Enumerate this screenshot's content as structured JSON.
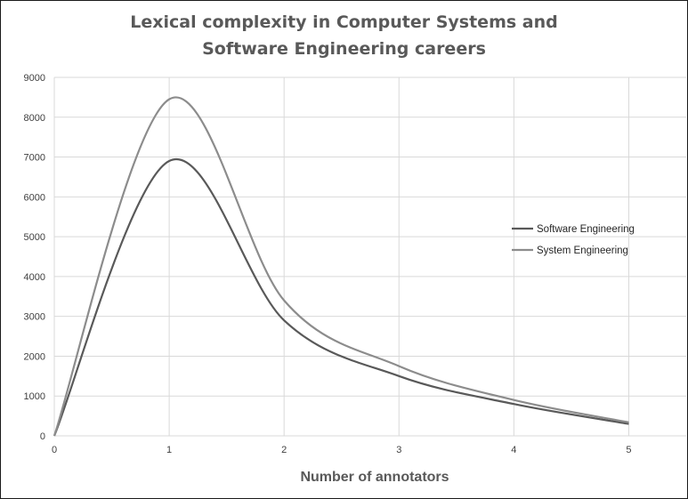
{
  "chart_data": {
    "type": "line",
    "title_line1": "Lexical complexity in Computer Systems and",
    "title_line2": "Software Engineering careers",
    "xlabel": "Number of annotators",
    "ylabel": "",
    "xlim": [
      0,
      5.5
    ],
    "ylim": [
      0,
      9000
    ],
    "x_ticks": [
      0,
      1,
      2,
      3,
      4,
      5
    ],
    "y_ticks": [
      0,
      1000,
      2000,
      3000,
      4000,
      5000,
      6000,
      7000,
      8000,
      9000
    ],
    "grid": true,
    "legend_position": "right",
    "series": [
      {
        "name": "Software Engineering",
        "color": "#595959",
        "x": [
          0,
          1,
          2,
          3,
          4,
          5
        ],
        "values": [
          0,
          6900,
          2900,
          1500,
          800,
          300
        ]
      },
      {
        "name": "System Engineering",
        "color": "#8c8c8c",
        "x": [
          0,
          1,
          2,
          3,
          4,
          5
        ],
        "values": [
          0,
          8450,
          3400,
          1750,
          900,
          340
        ]
      }
    ]
  }
}
